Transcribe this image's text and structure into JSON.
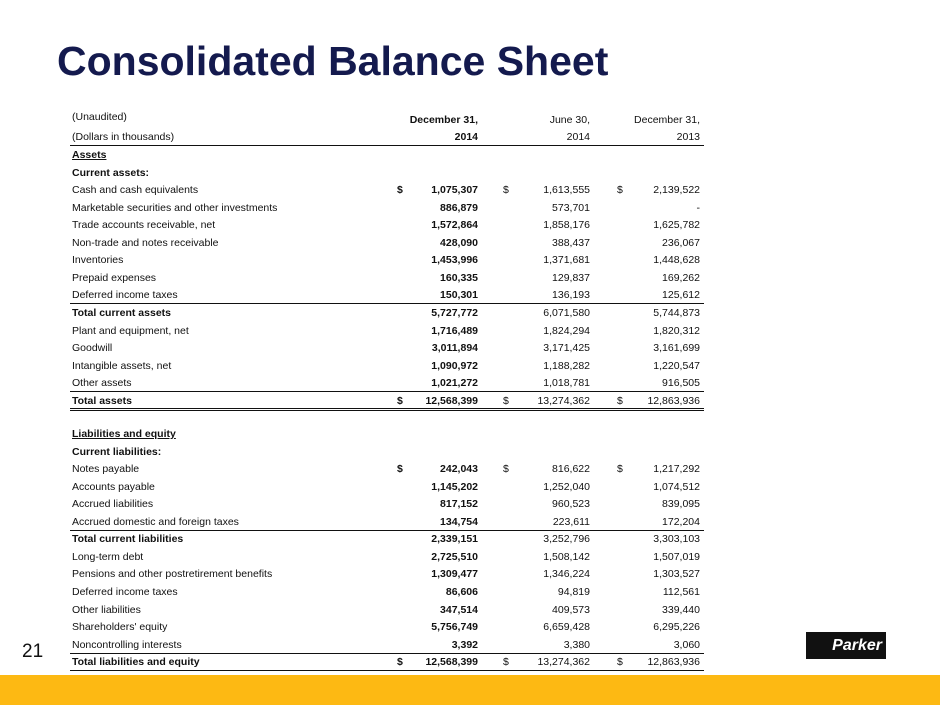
{
  "header": {
    "title": "Consolidated Balance Sheet",
    "page_number": "21",
    "logo": "Parker"
  },
  "table": {
    "note": "(Unaudited)",
    "units": "(Dollars in thousands)",
    "columns": [
      {
        "period": "December 31,",
        "year": "2014",
        "bold": true
      },
      {
        "period": "June 30,",
        "year": "2014",
        "bold": false
      },
      {
        "period": "December 31,",
        "year": "2013",
        "bold": false
      }
    ],
    "rows": [
      {
        "label": "Assets",
        "bold": true,
        "underline": true
      },
      {
        "label": "Current assets:",
        "bold": true
      },
      {
        "label": "Cash and cash equivalents",
        "currency": "$",
        "values": [
          "1,075,307",
          "1,613,555",
          "2,139,522"
        ]
      },
      {
        "label": "Marketable securities and other investments",
        "values": [
          "886,879",
          "573,701",
          "-"
        ]
      },
      {
        "label": "Trade accounts receivable, net",
        "values": [
          "1,572,864",
          "1,858,176",
          "1,625,782"
        ]
      },
      {
        "label": "Non-trade and notes receivable",
        "values": [
          "428,090",
          "388,437",
          "236,067"
        ]
      },
      {
        "label": "Inventories",
        "values": [
          "1,453,996",
          "1,371,681",
          "1,448,628"
        ]
      },
      {
        "label": "Prepaid expenses",
        "values": [
          "160,335",
          "129,837",
          "169,262"
        ]
      },
      {
        "label": "Deferred income taxes",
        "values": [
          "150,301",
          "136,193",
          "125,612"
        ],
        "rule_below": "single"
      },
      {
        "label": "Total current assets",
        "bold": true,
        "values": [
          "5,727,772",
          "6,071,580",
          "5,744,873"
        ]
      },
      {
        "label": "Plant and equipment, net",
        "values": [
          "1,716,489",
          "1,824,294",
          "1,820,312"
        ]
      },
      {
        "label": "Goodwill",
        "values": [
          "3,011,894",
          "3,171,425",
          "3,161,699"
        ]
      },
      {
        "label": "Intangible assets, net",
        "values": [
          "1,090,972",
          "1,188,282",
          "1,220,547"
        ]
      },
      {
        "label": "Other assets",
        "values": [
          "1,021,272",
          "1,018,781",
          "916,505"
        ],
        "rule_below": "single"
      },
      {
        "label": "Total assets",
        "bold": true,
        "currency": "$",
        "values": [
          "12,568,399",
          "13,274,362",
          "12,863,936"
        ],
        "rule_below": "double"
      },
      {
        "label": "Liabilities and equity",
        "bold": true,
        "underline": true
      },
      {
        "label": "Current liabilities:",
        "bold": true
      },
      {
        "label": "Notes payable",
        "currency": "$",
        "values": [
          "242,043",
          "816,622",
          "1,217,292"
        ]
      },
      {
        "label": "Accounts payable",
        "values": [
          "1,145,202",
          "1,252,040",
          "1,074,512"
        ]
      },
      {
        "label": "Accrued liabilities",
        "values": [
          "817,152",
          "960,523",
          "839,095"
        ]
      },
      {
        "label": "Accrued domestic and foreign taxes",
        "values": [
          "134,754",
          "223,611",
          "172,204"
        ],
        "rule_below": "single"
      },
      {
        "label": "Total current liabilities",
        "bold": true,
        "values": [
          "2,339,151",
          "3,252,796",
          "3,303,103"
        ]
      },
      {
        "label": "Long-term debt",
        "values": [
          "2,725,510",
          "1,508,142",
          "1,507,019"
        ]
      },
      {
        "label": "Pensions and other postretirement benefits",
        "values": [
          "1,309,477",
          "1,346,224",
          "1,303,527"
        ]
      },
      {
        "label": "Deferred income taxes",
        "values": [
          "86,606",
          "94,819",
          "112,561"
        ]
      },
      {
        "label": "Other liabilities",
        "values": [
          "347,514",
          "409,573",
          "339,440"
        ]
      },
      {
        "label": "Shareholders' equity",
        "values": [
          "5,756,749",
          "6,659,428",
          "6,295,226"
        ]
      },
      {
        "label": "Noncontrolling interests",
        "values": [
          "3,392",
          "3,380",
          "3,060"
        ],
        "rule_below": "single"
      },
      {
        "label": "Total liabilities and equity",
        "bold": true,
        "currency": "$",
        "values": [
          "12,568,399",
          "13,274,362",
          "12,863,936"
        ],
        "rule_below": "single"
      }
    ]
  }
}
